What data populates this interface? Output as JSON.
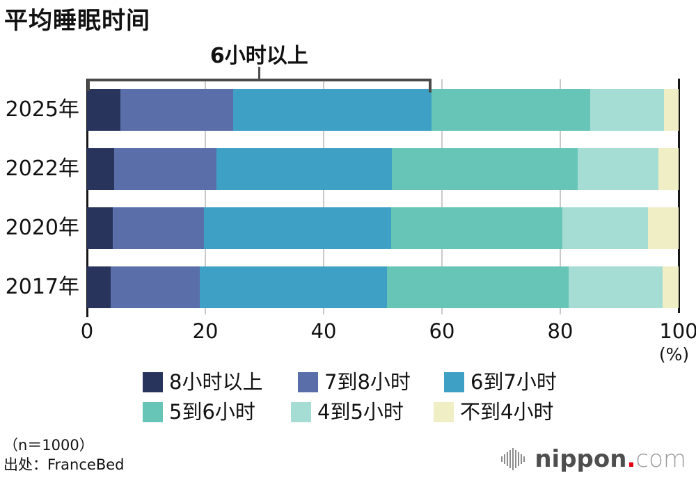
{
  "title": "平均睡眠时间",
  "annotation": {
    "label": "6小时以上"
  },
  "chart_data": {
    "type": "bar",
    "orientation": "horizontal",
    "stacked": true,
    "title": "平均睡眠时间",
    "categories": [
      "2025年",
      "2022年",
      "2020年",
      "2017年"
    ],
    "segments": [
      {
        "name": "8小时以上",
        "color": "#28345b"
      },
      {
        "name": "7到8小时",
        "color": "#5a6fa9"
      },
      {
        "name": "6到7小时",
        "color": "#3fa0c5"
      },
      {
        "name": "5到6小时",
        "color": "#66c5b7"
      },
      {
        "name": "4到5小时",
        "color": "#a5dcd4"
      },
      {
        "name": "不到4小时",
        "color": "#f0eec4"
      }
    ],
    "series": [
      {
        "name": "8小时以上",
        "values": [
          5.7,
          4.6,
          4.3,
          4.0
        ]
      },
      {
        "name": "7到8小时",
        "values": [
          19.0,
          17.3,
          15.5,
          15.0
        ]
      },
      {
        "name": "6到7小时",
        "values": [
          33.5,
          29.6,
          31.6,
          31.7
        ]
      },
      {
        "name": "5到6小时",
        "values": [
          26.9,
          31.4,
          29.0,
          30.7
        ]
      },
      {
        "name": "4到5小时",
        "values": [
          12.4,
          13.7,
          14.4,
          15.9
        ]
      },
      {
        "name": "不到4小时",
        "values": [
          2.5,
          3.4,
          5.2,
          2.7
        ]
      }
    ],
    "xlim": [
      0,
      100
    ],
    "xticks": [
      "0",
      "20",
      "40",
      "60",
      "80",
      "100"
    ],
    "x_unit_label": "(%)",
    "grid": true,
    "legend_position": "bottom",
    "bracket_annotation": {
      "label": "6小时以上",
      "covers_segments": [
        "8小时以上",
        "7到8小时",
        "6到7小时"
      ],
      "row": "2025年",
      "from_pct": 0,
      "to_pct": 58.2
    }
  },
  "footer": {
    "sample": "（n＝1000）",
    "source": "出处：FranceBed"
  },
  "logo": {
    "brand": "nippon",
    "dot": ".",
    "tld": "com"
  }
}
